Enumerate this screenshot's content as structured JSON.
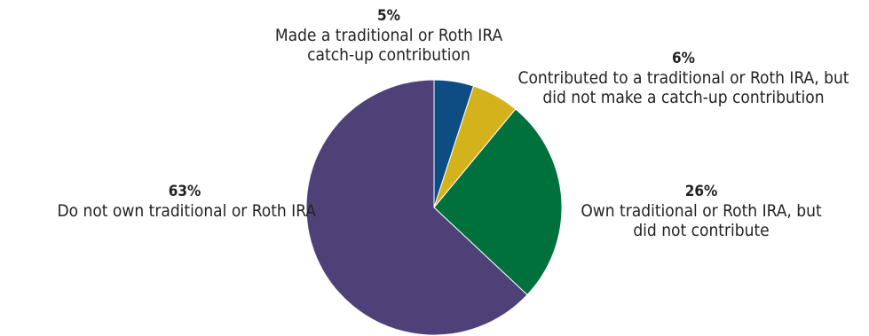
{
  "chart_data": {
    "type": "pie",
    "title": "",
    "start_angle_deg": 0,
    "direction": "clockwise",
    "slices": [
      {
        "value": 5,
        "percent_label": "5%",
        "label_lines": [
          "Made a traditional or Roth IRA",
          "catch-up contribution"
        ],
        "color": "#0e4c84"
      },
      {
        "value": 6,
        "percent_label": "6%",
        "label_lines": [
          "Contributed to a traditional or Roth IRA, but",
          "did not make a catch-up contribution"
        ],
        "color": "#d4b21c"
      },
      {
        "value": 26,
        "percent_label": "26%",
        "label_lines": [
          "Own traditional or Roth IRA, but",
          "did not contribute"
        ],
        "color": "#00703c"
      },
      {
        "value": 63,
        "percent_label": "63%",
        "label_lines": [
          "Do not own traditional or Roth IRA"
        ],
        "color": "#4e4178"
      }
    ]
  }
}
